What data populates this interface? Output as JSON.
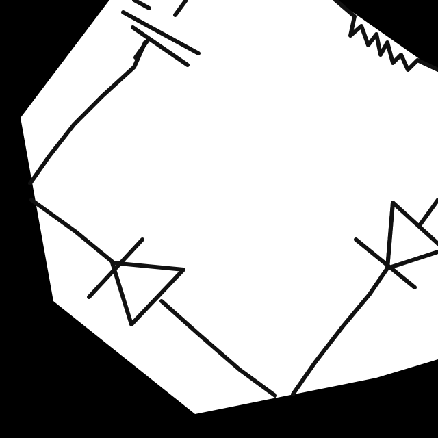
{
  "colors": {
    "background": "#000000",
    "paper": "#ffffff",
    "ink": "#111111"
  },
  "components": [
    {
      "id": "capacitor",
      "type": "capacitor"
    },
    {
      "id": "resistor",
      "type": "resistor"
    },
    {
      "id": "diode-left",
      "type": "diode"
    },
    {
      "id": "diode-right",
      "type": "diode"
    }
  ]
}
